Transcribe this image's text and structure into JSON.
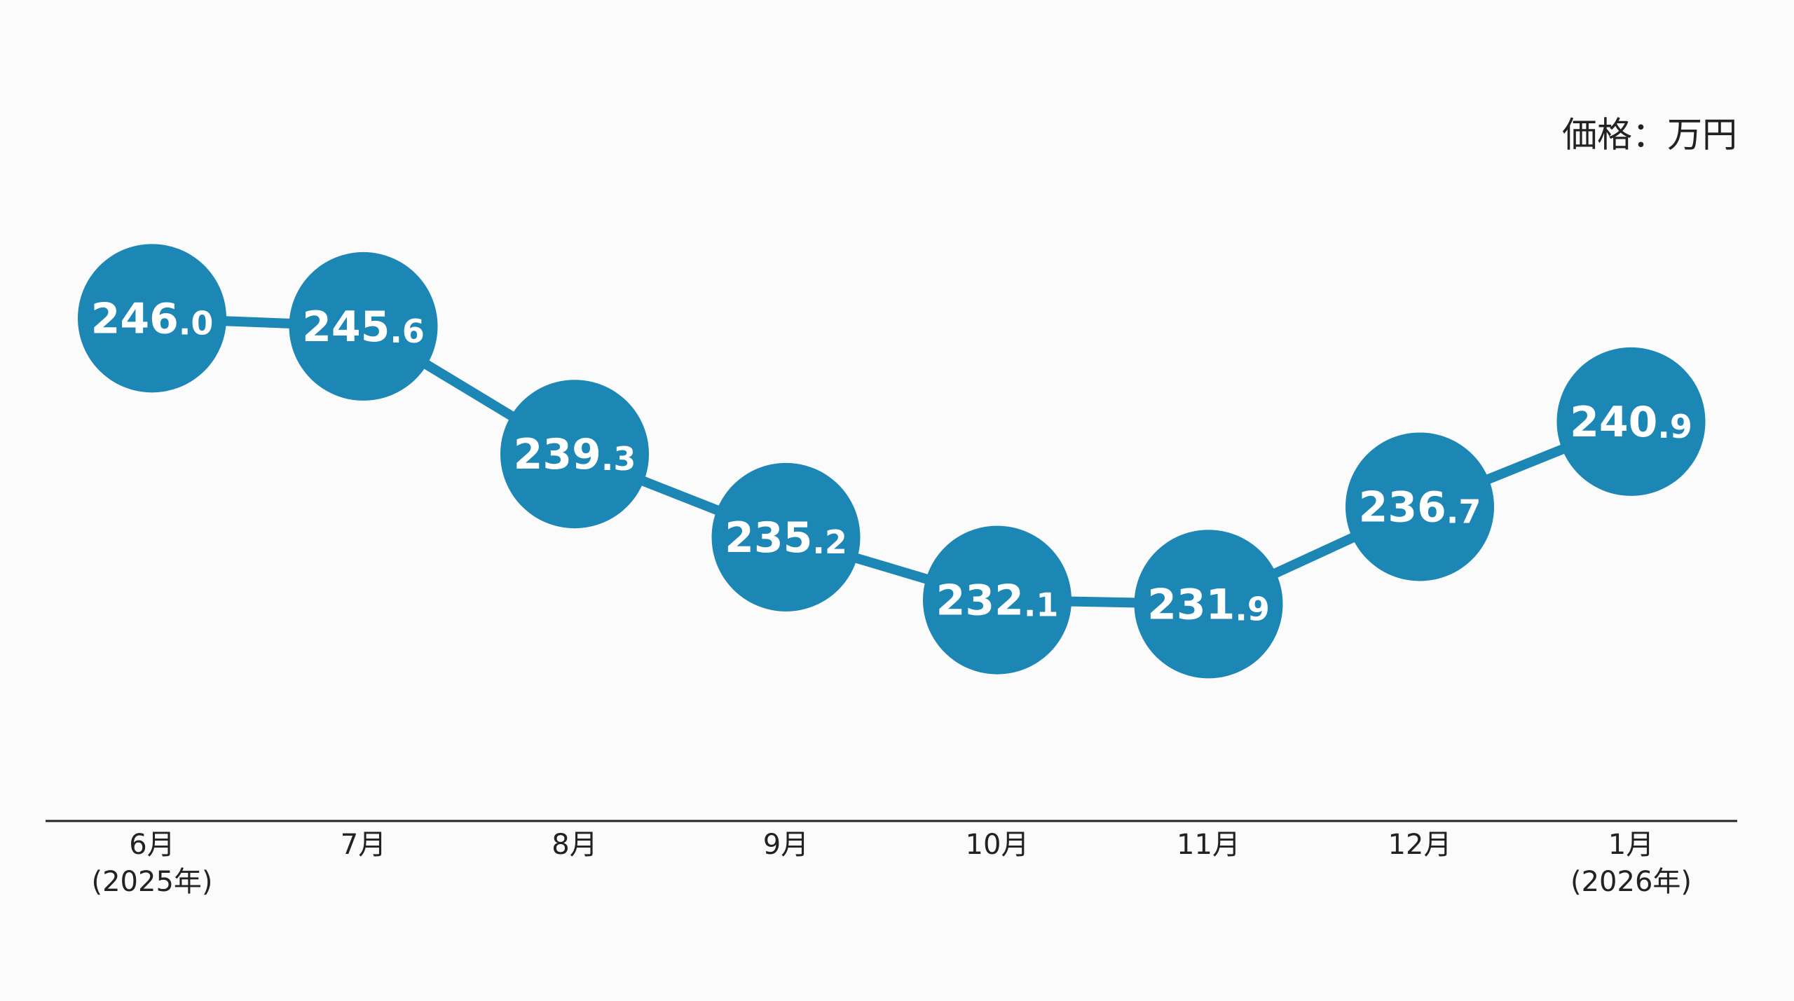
{
  "chart_data": {
    "type": "line",
    "unit_label": "価格：万円",
    "categories": [
      "6月\n(2025年)",
      "7月",
      "8月",
      "9月",
      "10月",
      "11月",
      "12月",
      "1月\n(2026年)"
    ],
    "values": [
      246.0,
      245.6,
      239.3,
      235.2,
      232.1,
      231.9,
      236.7,
      240.9
    ],
    "value_labels": [
      "246.0",
      "245.6",
      "239.3",
      "235.2",
      "232.1",
      "231.9",
      "236.7",
      "240.9"
    ],
    "color": "#1c86b5",
    "ylim": [
      221.2,
      261.7
    ]
  }
}
